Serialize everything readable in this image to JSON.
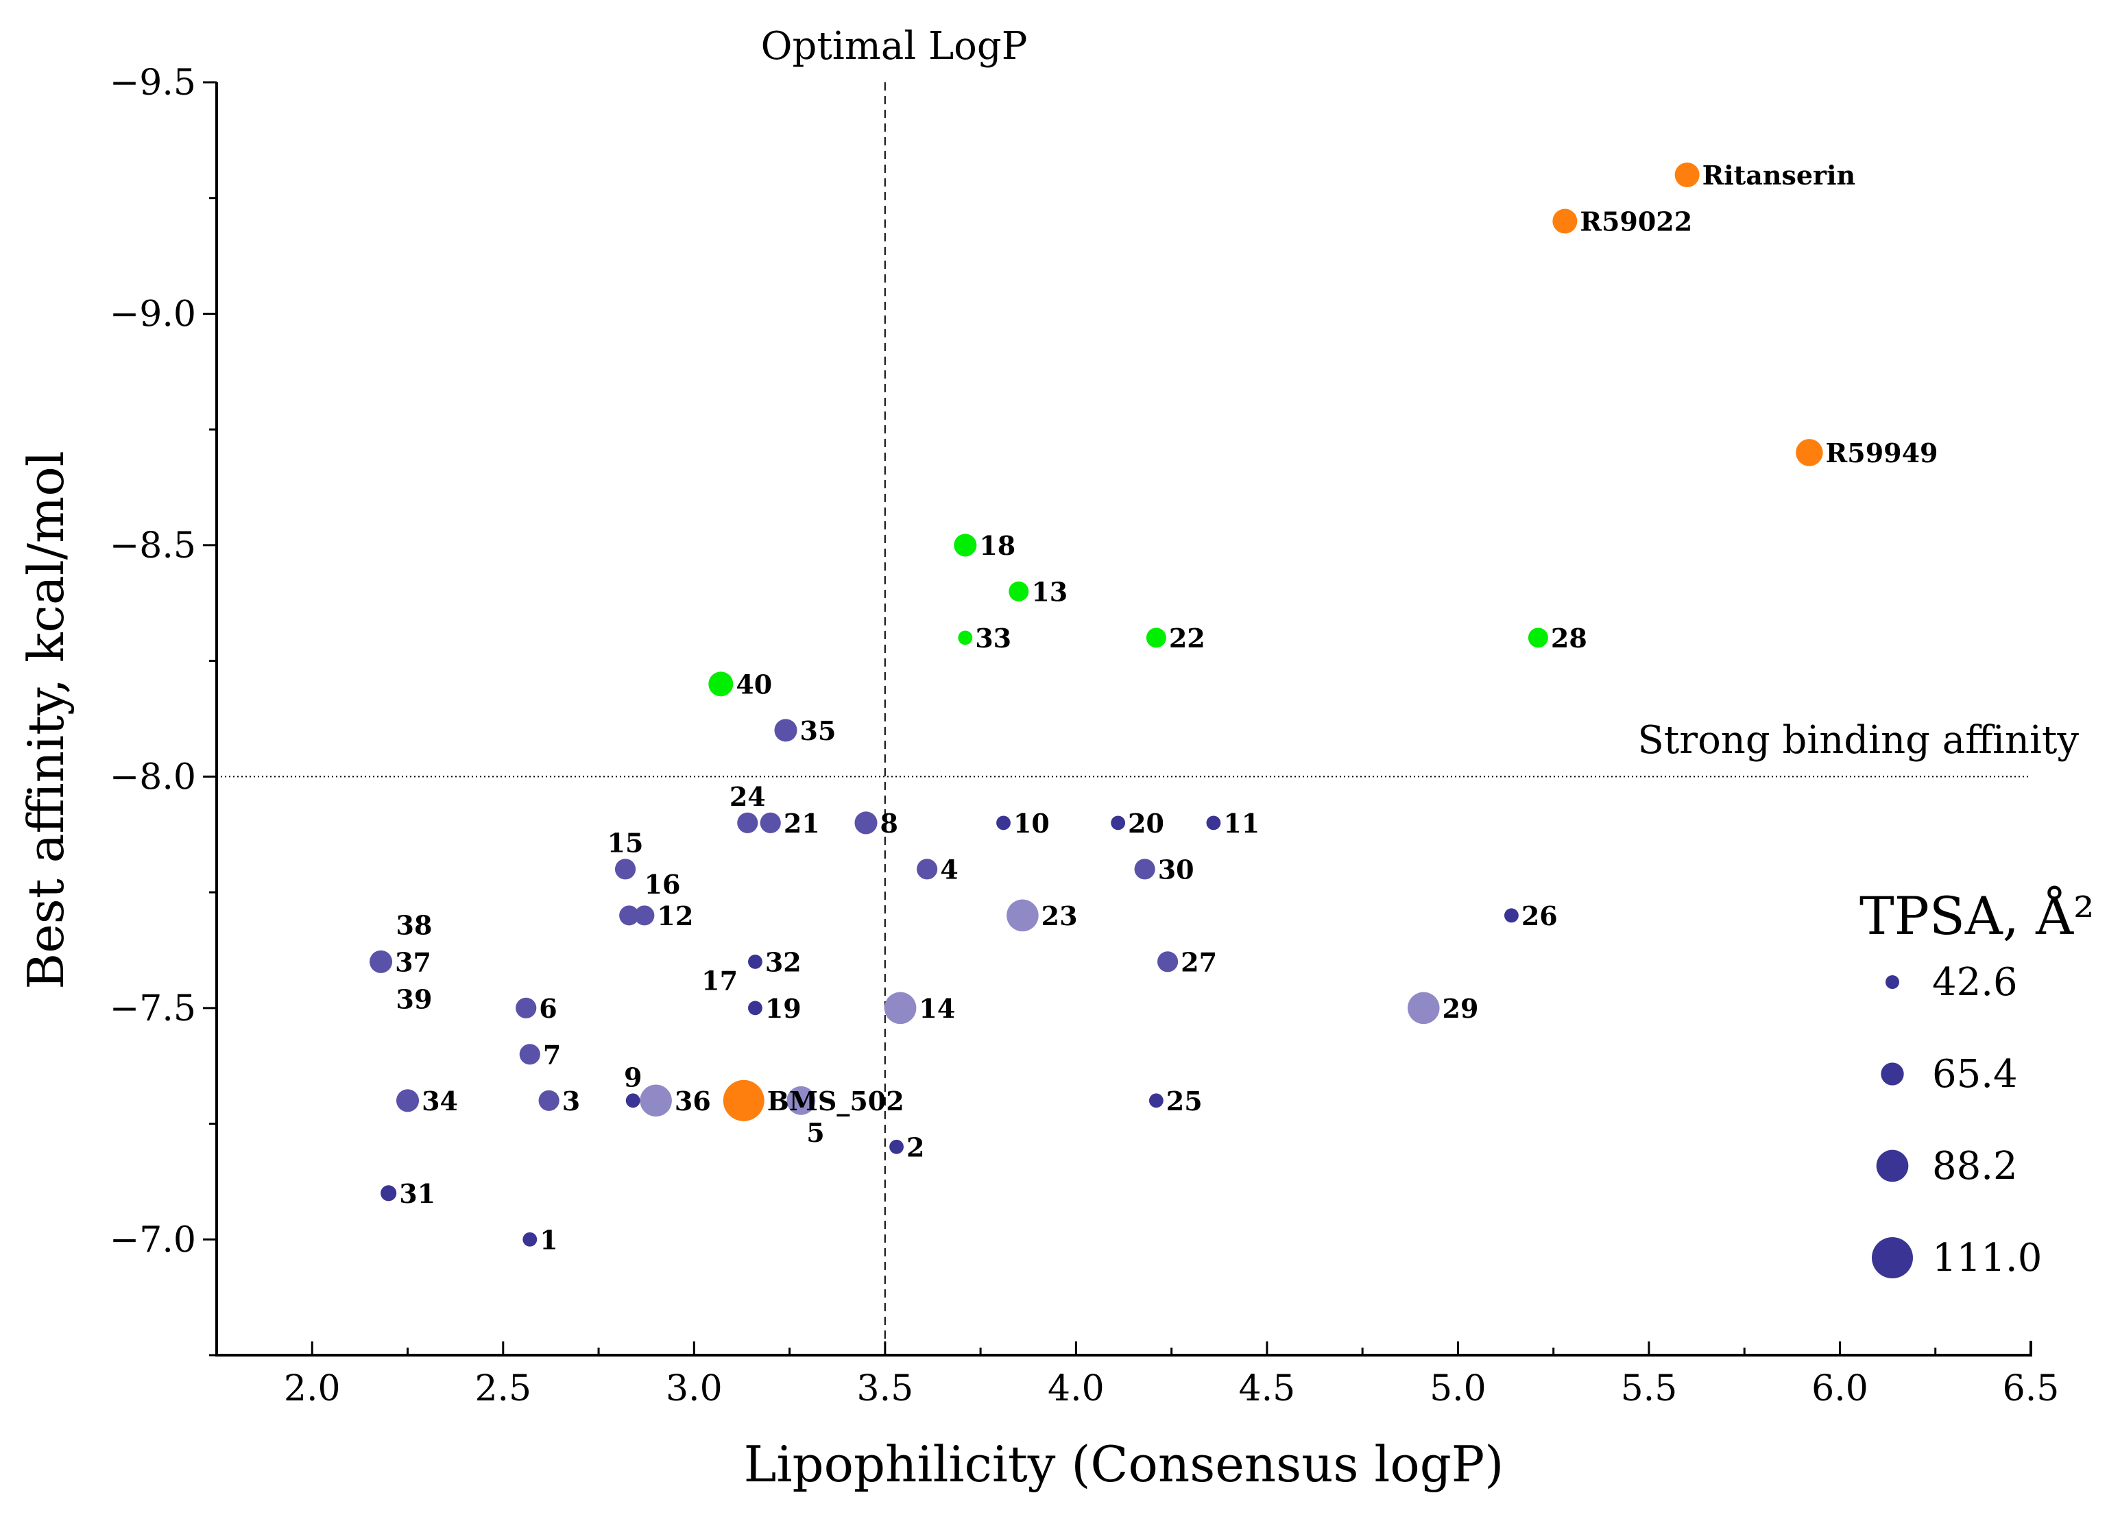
{
  "chart_data": {
    "type": "scatter",
    "title": "",
    "xlabel": "Lipophilicity (Consensus logP)",
    "ylabel": "Best affinity, kcal/mol",
    "xlim": [
      1.75,
      6.5
    ],
    "ylim": [
      -6.75,
      -9.5
    ],
    "xticks": [
      2.0,
      2.5,
      3.0,
      3.5,
      4.0,
      4.5,
      5.0,
      5.5,
      6.0,
      6.5
    ],
    "xtick_labels": [
      "2.0",
      "2.5",
      "3.0",
      "3.5",
      "4.0",
      "4.5",
      "5.0",
      "5.5",
      "6.0",
      "6.5"
    ],
    "yticks": [
      -7.0,
      -7.5,
      -8.0,
      -8.5,
      -9.0,
      -9.5
    ],
    "ytick_labels": [
      "−7.0",
      "−7.5",
      "−8.0",
      "−8.5",
      "−9.0",
      "−9.5"
    ],
    "reference_lines": [
      {
        "orientation": "vertical",
        "value": 3.5,
        "label": "Optimal LogP",
        "style": "dashed"
      },
      {
        "orientation": "horizontal",
        "value": -8.0,
        "label": "Strong binding affinity",
        "style": "dotted"
      }
    ],
    "legend": {
      "title": "TPSA, Å²",
      "position": "bottom-right",
      "entries": [
        {
          "label": "42.6",
          "value": 42.6
        },
        {
          "label": "65.4",
          "value": 65.4
        },
        {
          "label": "88.2",
          "value": 88.2
        },
        {
          "label": "111.0",
          "value": 111.0
        }
      ]
    },
    "colors": {
      "reference": "#ff7f0e",
      "strong": "#00ee00",
      "dark": "#3a3494",
      "mid": "#5a52a8",
      "light": "#8f89c6"
    },
    "points": [
      {
        "label": "Ritanserin",
        "x": 5.6,
        "y": -9.3,
        "tpsa": 70,
        "group": "reference"
      },
      {
        "label": "R59022",
        "x": 5.28,
        "y": -9.2,
        "tpsa": 70,
        "group": "reference"
      },
      {
        "label": "R59949",
        "x": 5.92,
        "y": -8.7,
        "tpsa": 76,
        "group": "reference"
      },
      {
        "label": "BMS_502",
        "x": 3.13,
        "y": -7.3,
        "tpsa": 111,
        "group": "reference"
      },
      {
        "label": "18",
        "x": 3.71,
        "y": -8.5,
        "tpsa": 65,
        "group": "strong"
      },
      {
        "label": "13",
        "x": 3.85,
        "y": -8.4,
        "tpsa": 58,
        "group": "strong"
      },
      {
        "label": "33",
        "x": 3.71,
        "y": -8.3,
        "tpsa": 44,
        "group": "strong"
      },
      {
        "label": "22",
        "x": 4.21,
        "y": -8.3,
        "tpsa": 58,
        "group": "strong"
      },
      {
        "label": "28",
        "x": 5.21,
        "y": -8.3,
        "tpsa": 58,
        "group": "strong"
      },
      {
        "label": "40",
        "x": 3.07,
        "y": -8.2,
        "tpsa": 70,
        "group": "strong"
      },
      {
        "label": "35",
        "x": 3.24,
        "y": -8.1,
        "tpsa": 65,
        "group": "mid"
      },
      {
        "label": "24",
        "x": 3.14,
        "y": -7.9,
        "tpsa": 60,
        "group": "mid"
      },
      {
        "label": "21",
        "x": 3.2,
        "y": -7.9,
        "tpsa": 60,
        "group": "mid"
      },
      {
        "label": "8",
        "x": 3.45,
        "y": -7.9,
        "tpsa": 65,
        "group": "mid"
      },
      {
        "label": "10",
        "x": 3.81,
        "y": -7.9,
        "tpsa": 44,
        "group": "dark"
      },
      {
        "label": "20",
        "x": 4.11,
        "y": -7.9,
        "tpsa": 44,
        "group": "dark"
      },
      {
        "label": "11",
        "x": 4.36,
        "y": -7.9,
        "tpsa": 44,
        "group": "dark"
      },
      {
        "label": "15",
        "x": 2.82,
        "y": -7.8,
        "tpsa": 60,
        "group": "mid"
      },
      {
        "label": "4",
        "x": 3.61,
        "y": -7.8,
        "tpsa": 60,
        "group": "mid"
      },
      {
        "label": "30",
        "x": 4.18,
        "y": -7.8,
        "tpsa": 60,
        "group": "mid"
      },
      {
        "label": "16",
        "x": 2.83,
        "y": -7.7,
        "tpsa": 58,
        "group": "mid"
      },
      {
        "label": "12",
        "x": 2.87,
        "y": -7.7,
        "tpsa": 58,
        "group": "mid"
      },
      {
        "label": "23",
        "x": 3.86,
        "y": -7.7,
        "tpsa": 88,
        "group": "light"
      },
      {
        "label": "26",
        "x": 5.14,
        "y": -7.7,
        "tpsa": 44,
        "group": "dark"
      },
      {
        "label": "37",
        "x": 2.18,
        "y": -7.6,
        "tpsa": 65,
        "group": "mid"
      },
      {
        "label": "32",
        "x": 3.16,
        "y": -7.6,
        "tpsa": 44,
        "group": "dark"
      },
      {
        "label": "27",
        "x": 4.24,
        "y": -7.6,
        "tpsa": 60,
        "group": "mid"
      },
      {
        "label": "6",
        "x": 2.56,
        "y": -7.5,
        "tpsa": 60,
        "group": "mid"
      },
      {
        "label": "19",
        "x": 3.16,
        "y": -7.5,
        "tpsa": 44,
        "group": "dark"
      },
      {
        "label": "14",
        "x": 3.54,
        "y": -7.5,
        "tpsa": 88,
        "group": "light"
      },
      {
        "label": "29",
        "x": 4.91,
        "y": -7.5,
        "tpsa": 88,
        "group": "light"
      },
      {
        "label": "7",
        "x": 2.57,
        "y": -7.4,
        "tpsa": 60,
        "group": "mid"
      },
      {
        "label": "34",
        "x": 2.25,
        "y": -7.3,
        "tpsa": 65,
        "group": "mid"
      },
      {
        "label": "3",
        "x": 2.62,
        "y": -7.3,
        "tpsa": 60,
        "group": "mid"
      },
      {
        "label": "9",
        "x": 2.84,
        "y": -7.3,
        "tpsa": 44,
        "group": "dark"
      },
      {
        "label": "36",
        "x": 2.9,
        "y": -7.3,
        "tpsa": 88,
        "group": "light"
      },
      {
        "label": "5",
        "x": 3.28,
        "y": -7.3,
        "tpsa": 80,
        "group": "light"
      },
      {
        "label": "25",
        "x": 4.21,
        "y": -7.3,
        "tpsa": 44,
        "group": "dark"
      },
      {
        "label": "2",
        "x": 3.53,
        "y": -7.2,
        "tpsa": 44,
        "group": "dark"
      },
      {
        "label": "31",
        "x": 2.2,
        "y": -7.1,
        "tpsa": 48,
        "group": "dark"
      },
      {
        "label": "1",
        "x": 2.57,
        "y": -7.0,
        "tpsa": 44,
        "group": "dark"
      }
    ],
    "unplaced_labels": [
      "38",
      "39",
      "17"
    ]
  }
}
